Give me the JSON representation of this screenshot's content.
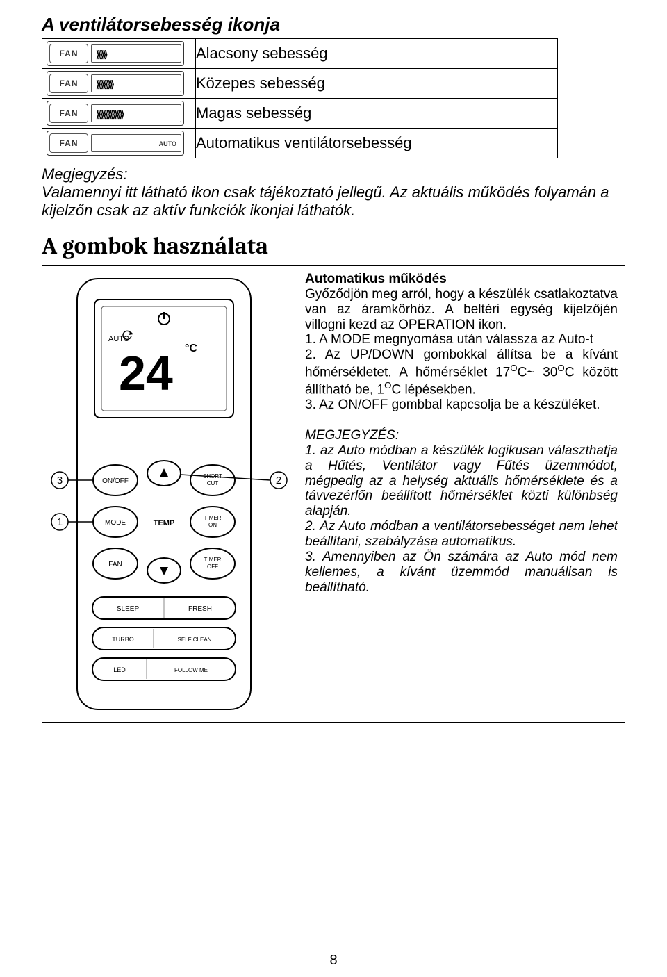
{
  "title_fan_icon": "A ventilátorsebesség ikonja",
  "fan_rows": [
    {
      "label": "Alacsony sebesség",
      "wave_count": 3,
      "auto": false
    },
    {
      "label": "Közepes sebesség",
      "wave_count": 5,
      "auto": false
    },
    {
      "label": "Magas sebesség",
      "wave_count": 8,
      "auto": false
    },
    {
      "label": "Automatikus ventilátorsebesség",
      "wave_count": 0,
      "auto": true
    }
  ],
  "fan_button_text": "FAN",
  "auto_text": "AUTO",
  "note_label": "Megjegyzés:",
  "note_body": "Valamennyi itt látható ikon csak tájékoztató jellegű. Az aktuális működés folyamán a kijelzőn csak az aktív funkciók ikonjai láthatók.",
  "heading_usage": "A gombok használata",
  "remote": {
    "display_mode": "AUTO",
    "display_temp": "24",
    "display_unit": "°C",
    "buttons": {
      "onoff": "ON/OFF",
      "shortcut": "SHORT\nCUT",
      "mode": "MODE",
      "timer_on": "TIMER\nON",
      "fan": "FAN",
      "timer_off": "TIMER\nOFF",
      "sleep": "SLEEP",
      "fresh": "FRESH",
      "turbo": "TURBO",
      "selfclean": "SELF CLEAN",
      "led": "LED",
      "followme": "FOLLOW ME",
      "temp": "TEMP",
      "up": "▲",
      "down": "▼"
    },
    "callouts": {
      "1": "1",
      "2": "2",
      "3": "3"
    }
  },
  "auto_section": {
    "heading": "Automatikus működés",
    "intro": "Győződjön meg arról, hogy a készülék csatlakoztatva van az áramkörhöz. A beltéri egység kijelzőjén villogni kezd az OPERATION ikon.",
    "step1": "1. A MODE megnyomása után válassza az Auto-t",
    "step2_a": "2. Az UP/DOWN gombokkal állítsa be a kívánt hőmérsékletet. A hőmérséklet 17",
    "step2_b": "C~ 30",
    "step2_c": "C között állítható be, 1",
    "step2_d": "C lépésekben.",
    "step3": "3. Az ON/OFF gombbal kapcsolja be a készüléket.",
    "note_label": "MEGJEGYZÉS:",
    "note1": "1. az Auto módban a készülék logikusan választhatja a Hűtés, Ventilátor vagy Fűtés üzemmódot, mégpedig az a helység aktuális hőmérséklete és a távvezérlőn beállított hőmérséklet közti különbség alapján.",
    "note2": "2. Az Auto módban a ventilátorsebességet nem lehet beállítani, szabályzása automatikus.",
    "note3": "3. Amennyiben az Ön számára az Auto mód nem kellemes, a kívánt üzemmód manuálisan is beállítható."
  },
  "page_number": "8",
  "colors": {
    "border": "#000000",
    "text": "#000000",
    "bg": "#ffffff"
  }
}
